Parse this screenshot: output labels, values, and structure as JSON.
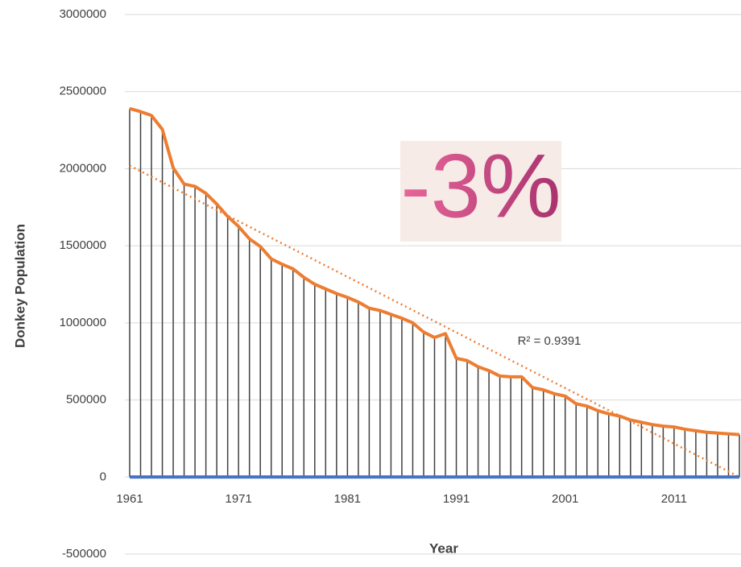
{
  "chart_data": {
    "type": "line",
    "x_label": "Year",
    "y_label": "Donkey Population",
    "x": [
      1961,
      1962,
      1963,
      1964,
      1965,
      1966,
      1967,
      1968,
      1969,
      1970,
      1971,
      1972,
      1973,
      1974,
      1975,
      1976,
      1977,
      1978,
      1979,
      1980,
      1981,
      1982,
      1983,
      1984,
      1985,
      1986,
      1987,
      1988,
      1989,
      1990,
      1991,
      1992,
      1993,
      1994,
      1995,
      1996,
      1997,
      1998,
      1999,
      2000,
      2001,
      2002,
      2003,
      2004,
      2005,
      2006,
      2007,
      2008,
      2009,
      2010,
      2011,
      2012,
      2013,
      2014,
      2015,
      2016,
      2017
    ],
    "series": [
      {
        "color": "#ed7d31",
        "drop_lines": "#404040",
        "values": [
          2390000,
          2370000,
          2345000,
          2255000,
          2005000,
          1900000,
          1885000,
          1840000,
          1770000,
          1690000,
          1625000,
          1545000,
          1495000,
          1415000,
          1380000,
          1350000,
          1295000,
          1250000,
          1220000,
          1190000,
          1165000,
          1135000,
          1095000,
          1080000,
          1055000,
          1030000,
          1000000,
          940000,
          905000,
          930000,
          770000,
          755000,
          715000,
          690000,
          655000,
          650000,
          650000,
          580000,
          565000,
          540000,
          525000,
          475000,
          460000,
          430000,
          410000,
          395000,
          370000,
          355000,
          340000,
          330000,
          325000,
          310000,
          300000,
          290000,
          285000,
          280000,
          275000
        ]
      },
      {
        "color": "#4472c4",
        "values": [
          0,
          0,
          0,
          0,
          0,
          0,
          0,
          0,
          0,
          0,
          0,
          0,
          0,
          0,
          0,
          0,
          0,
          0,
          0,
          0,
          0,
          0,
          0,
          0,
          0,
          0,
          0,
          0,
          0,
          0,
          0,
          0,
          0,
          0,
          0,
          0,
          0,
          0,
          0,
          0,
          0,
          0,
          0,
          0,
          0,
          0,
          0,
          0,
          0,
          0,
          0,
          0,
          0,
          0,
          0,
          0,
          0
        ]
      }
    ],
    "trendline": {
      "x": [
        1961,
        2017
      ],
      "values": [
        2020000,
        0
      ],
      "color": "#ed7d31",
      "label": "R² = 0.9391"
    },
    "badge": "-3%",
    "xlim": [
      1961,
      2017
    ],
    "xticks": [
      1961,
      1971,
      1981,
      1991,
      2001,
      2011
    ],
    "ylim": [
      -500000,
      3000000
    ],
    "yticks": [
      -500000,
      0,
      500000,
      1000000,
      1500000,
      2000000,
      2500000,
      3000000
    ],
    "grid": true
  }
}
